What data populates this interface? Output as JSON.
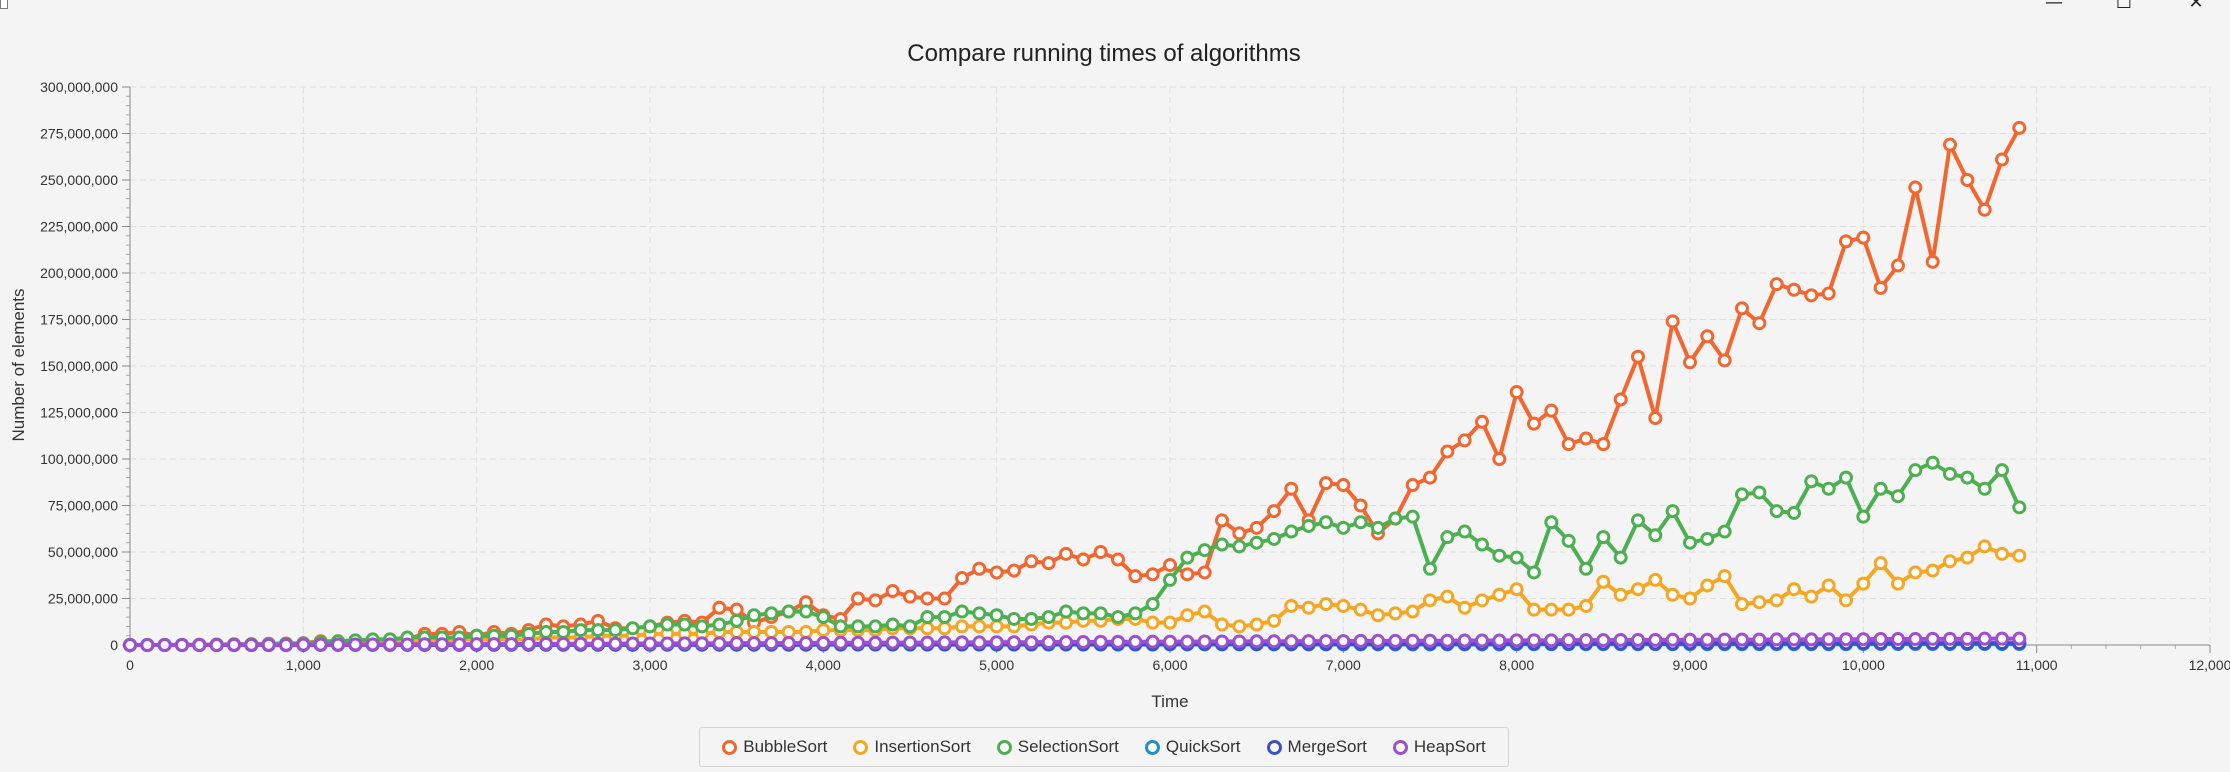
{
  "window": {
    "minimize_glyph": "—",
    "maximize_glyph": "☐",
    "close_glyph": "✕"
  },
  "chart_data": {
    "type": "line",
    "title": "Compare running times of algorithms",
    "xlabel": "Time",
    "ylabel": "Number of elements",
    "xlim": [
      0,
      12000
    ],
    "ylim": [
      0,
      300000000
    ],
    "x_tick_step": 1000,
    "y_tick_step": 25000000,
    "grid": true,
    "legend_position": "bottom",
    "x": [
      0,
      100,
      200,
      300,
      400,
      500,
      600,
      700,
      800,
      900,
      1000,
      1100,
      1200,
      1300,
      1400,
      1500,
      1600,
      1700,
      1800,
      1900,
      2000,
      2100,
      2200,
      2300,
      2400,
      2500,
      2600,
      2700,
      2800,
      2900,
      3000,
      3100,
      3200,
      3300,
      3400,
      3500,
      3600,
      3700,
      3800,
      3900,
      4000,
      4100,
      4200,
      4300,
      4400,
      4500,
      4600,
      4700,
      4800,
      4900,
      5000,
      5100,
      5200,
      5300,
      5400,
      5500,
      5600,
      5700,
      5800,
      5900,
      6000,
      6100,
      6200,
      6300,
      6400,
      6500,
      6600,
      6700,
      6800,
      6900,
      7000,
      7100,
      7200,
      7300,
      7400,
      7500,
      7600,
      7700,
      7800,
      7900,
      8000,
      8100,
      8200,
      8300,
      8400,
      8500,
      8600,
      8700,
      8800,
      8900,
      9000,
      9100,
      9200,
      9300,
      9400,
      9500,
      9600,
      9700,
      9800,
      9900,
      10000,
      10100,
      10200,
      10300,
      10400,
      10500,
      10600,
      10700,
      10800,
      10900
    ],
    "series": [
      {
        "name": "BubbleSort",
        "color": "#f26630",
        "values": [
          0,
          0,
          0.1,
          0.1,
          0.2,
          0.3,
          0.4,
          0.5,
          0.7,
          0.8,
          1.0,
          2,
          2,
          2,
          2.5,
          3,
          3,
          6,
          6,
          7,
          5,
          7,
          6,
          8,
          11,
          10,
          11,
          13,
          9,
          9,
          10,
          12,
          13,
          12,
          20,
          19,
          12,
          15,
          18,
          23,
          16,
          14,
          25,
          24,
          29,
          26,
          25,
          25,
          36,
          41,
          39,
          40,
          45,
          44,
          49,
          46,
          50,
          46,
          37,
          38,
          43,
          38,
          39,
          67,
          60,
          63,
          72,
          84,
          67,
          87,
          86,
          75,
          60,
          68,
          86,
          90,
          104,
          110,
          120,
          100,
          136,
          119,
          126,
          108,
          111,
          108,
          132,
          155,
          122,
          174,
          152,
          166,
          153,
          181,
          173,
          194,
          191,
          188,
          189,
          217,
          219,
          192,
          204,
          246,
          206,
          269,
          250,
          234,
          261,
          278
        ]
      },
      {
        "name": "InsertionSort",
        "color": "#f5a623",
        "values": [
          0,
          0,
          0,
          0,
          0.1,
          0.1,
          0.2,
          0.2,
          0.3,
          0.4,
          0.5,
          1,
          1,
          1,
          1,
          1.5,
          1.5,
          2,
          2,
          3,
          3,
          3,
          3,
          3,
          4,
          4,
          4,
          5,
          5,
          5,
          6,
          6,
          6,
          6,
          7,
          7,
          7,
          7,
          7,
          7,
          8,
          8,
          8,
          8,
          9,
          9,
          9,
          9,
          10,
          10,
          10,
          10,
          11,
          12,
          12,
          13,
          13,
          14,
          14,
          12,
          12,
          16,
          18,
          11,
          10,
          11,
          13,
          21,
          20,
          22,
          21,
          19,
          16,
          17,
          18,
          24,
          26,
          20,
          24,
          27,
          30,
          19,
          19,
          19,
          21,
          34,
          27,
          30,
          35,
          27,
          25,
          32,
          37,
          22,
          23,
          24,
          30,
          26,
          32,
          24,
          33,
          44,
          33,
          39,
          40,
          45,
          47,
          53,
          49,
          48
        ]
      },
      {
        "name": "SelectionSort",
        "color": "#4caf50",
        "values": [
          0,
          0,
          0,
          0,
          0.1,
          0.2,
          0.3,
          0.4,
          0.5,
          0.6,
          0.8,
          1.5,
          2,
          2.5,
          3,
          3,
          4,
          4,
          4,
          4,
          5,
          5,
          5,
          6,
          7,
          7,
          8,
          8,
          8,
          9,
          10,
          11,
          11,
          10,
          11,
          13,
          16,
          17,
          18,
          18,
          15,
          10,
          10,
          10,
          11,
          10,
          15,
          15,
          18,
          17,
          16,
          14,
          14,
          15,
          18,
          17,
          17,
          15,
          17,
          22,
          35,
          47,
          51,
          54,
          53,
          55,
          57,
          61,
          64,
          66,
          63,
          66,
          63,
          68,
          69,
          41,
          58,
          61,
          54,
          48,
          47,
          39,
          66,
          56,
          41,
          58,
          47,
          67,
          59,
          72,
          55,
          57,
          61,
          81,
          82,
          72,
          71,
          88,
          84,
          90,
          69,
          84,
          80,
          94,
          98,
          92,
          90,
          84,
          94,
          74
        ]
      },
      {
        "name": "QuickSort",
        "color": "#1e90c8",
        "values": [
          0,
          0,
          0,
          0,
          0,
          0,
          0,
          0,
          0,
          0,
          0,
          0.05,
          0.05,
          0.05,
          0.05,
          0.05,
          0.05,
          0.05,
          0.05,
          0.05,
          0.1,
          0.1,
          0.1,
          0.1,
          0.1,
          0.1,
          0.1,
          0.1,
          0.1,
          0.1,
          0.1,
          0.1,
          0.1,
          0.1,
          0.1,
          0.1,
          0.1,
          0.1,
          0.1,
          0.1,
          0.2,
          0.2,
          0.2,
          0.2,
          0.2,
          0.2,
          0.2,
          0.2,
          0.2,
          0.2,
          0.2,
          0.2,
          0.2,
          0.2,
          0.2,
          0.2,
          0.2,
          0.2,
          0.2,
          0.2,
          0.3,
          0.3,
          0.3,
          0.3,
          0.3,
          0.3,
          0.3,
          0.3,
          0.3,
          0.3,
          0.3,
          0.3,
          0.3,
          0.3,
          0.3,
          0.3,
          0.3,
          0.3,
          0.3,
          0.3,
          0.4,
          0.4,
          0.4,
          0.4,
          0.4,
          0.4,
          0.4,
          0.4,
          0.4,
          0.4,
          0.4,
          0.4,
          0.4,
          0.4,
          0.4,
          0.4,
          0.4,
          0.4,
          0.4,
          0.4,
          0.5,
          0.5,
          0.5,
          0.5,
          0.5,
          0.5,
          0.5,
          0.5,
          0.5,
          0.5
        ]
      },
      {
        "name": "MergeSort",
        "color": "#3a4fc8",
        "values": [
          0,
          0,
          0,
          0,
          0,
          0,
          0,
          0,
          0,
          0,
          0.1,
          0.1,
          0.1,
          0.1,
          0.1,
          0.1,
          0.1,
          0.1,
          0.1,
          0.1,
          0.2,
          0.2,
          0.2,
          0.2,
          0.2,
          0.2,
          0.2,
          0.2,
          0.2,
          0.2,
          0.3,
          0.3,
          0.3,
          0.3,
          0.3,
          0.3,
          0.3,
          0.3,
          0.3,
          0.3,
          0.4,
          0.4,
          0.4,
          0.4,
          0.4,
          0.4,
          0.4,
          0.4,
          0.4,
          0.4,
          0.5,
          0.5,
          0.5,
          0.5,
          0.5,
          0.5,
          0.5,
          0.5,
          0.5,
          0.5,
          0.6,
          0.6,
          0.6,
          0.6,
          0.6,
          0.6,
          0.6,
          0.6,
          0.6,
          0.6,
          0.7,
          0.7,
          0.7,
          0.7,
          0.7,
          0.7,
          0.7,
          0.7,
          0.7,
          0.7,
          0.8,
          0.8,
          0.8,
          0.8,
          0.8,
          0.8,
          0.8,
          0.8,
          0.8,
          0.8,
          0.9,
          0.9,
          0.9,
          0.9,
          0.9,
          0.9,
          0.9,
          0.9,
          0.9,
          0.9,
          1.0,
          1.0,
          1.0,
          1.0,
          1.0,
          1.0,
          1.0,
          1.0,
          1.0,
          1.0
        ]
      },
      {
        "name": "HeapSort",
        "color": "#9c4fd0",
        "values": [
          0,
          0,
          0,
          0,
          0,
          0,
          0.1,
          0.1,
          0.1,
          0.1,
          0.2,
          0.2,
          0.2,
          0.3,
          0.3,
          0.3,
          0.3,
          0.4,
          0.4,
          0.4,
          0.5,
          0.5,
          0.5,
          0.6,
          0.6,
          0.6,
          0.7,
          0.7,
          0.7,
          0.8,
          0.8,
          0.8,
          0.9,
          0.9,
          0.9,
          1.0,
          1.0,
          1.0,
          1.1,
          1.1,
          1.1,
          1.2,
          1.2,
          1.2,
          1.3,
          1.3,
          1.3,
          1.4,
          1.4,
          1.4,
          1.5,
          1.5,
          1.5,
          1.6,
          1.6,
          1.6,
          1.7,
          1.7,
          1.7,
          1.8,
          1.8,
          1.8,
          1.9,
          1.9,
          1.9,
          2.0,
          2.0,
          2.0,
          2.1,
          2.1,
          2.1,
          2.2,
          2.2,
          2.2,
          2.3,
          2.3,
          2.3,
          2.4,
          2.4,
          2.4,
          2.5,
          2.5,
          2.5,
          2.6,
          2.6,
          2.6,
          2.7,
          2.7,
          2.7,
          2.8,
          2.8,
          2.8,
          2.9,
          2.9,
          2.9,
          3.0,
          3.0,
          3.0,
          3.1,
          3.1,
          3.1,
          3.2,
          3.2,
          3.2,
          3.3,
          3.3,
          3.3,
          3.4,
          3.4,
          3.4
        ]
      }
    ],
    "value_scale": 1000000
  }
}
